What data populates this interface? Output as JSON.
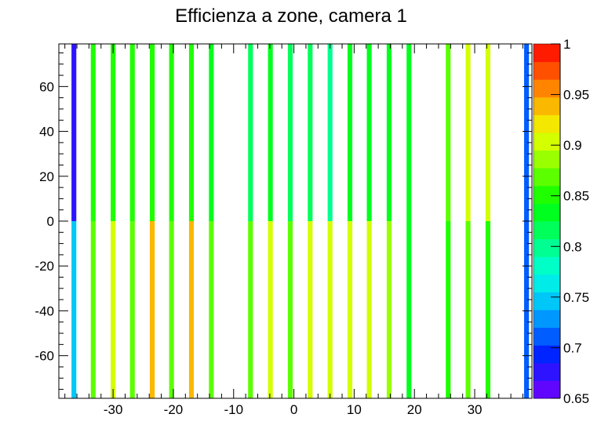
{
  "chart_data": {
    "type": "heatmap",
    "title": "Efficienza a zone, camera 1",
    "xlabel": "",
    "ylabel": "",
    "xlim": [
      -39,
      39.5
    ],
    "ylim": [
      -79,
      79
    ],
    "xticks": [
      -30,
      -20,
      -10,
      0,
      10,
      20,
      30
    ],
    "yticks": [
      -60,
      -40,
      -20,
      0,
      20,
      40,
      60
    ],
    "y_bins": [
      [
        -79,
        0
      ],
      [
        0,
        79
      ]
    ],
    "strip_width": 0.8,
    "colorbar": {
      "zlim": [
        0.65,
        1.0
      ],
      "ticks": [
        "0.65",
        "0.7",
        "0.75",
        "0.8",
        "0.85",
        "0.9",
        "0.95",
        "1"
      ],
      "n_levels": 20
    },
    "strips": [
      {
        "x": -36.5,
        "z_low": 0.74,
        "z_high": 0.67
      },
      {
        "x": -33.3,
        "z_low": 0.86,
        "z_high": 0.855
      },
      {
        "x": -30.0,
        "z_low": 0.895,
        "z_high": 0.855
      },
      {
        "x": -26.8,
        "z_low": 0.87,
        "z_high": 0.855
      },
      {
        "x": -23.5,
        "z_low": 0.935,
        "z_high": 0.855
      },
      {
        "x": -20.3,
        "z_low": 0.875,
        "z_high": 0.855
      },
      {
        "x": -17.0,
        "z_low": 0.935,
        "z_high": 0.855
      },
      {
        "x": -13.7,
        "z_low": 0.875,
        "z_high": 0.84
      },
      {
        "x": -7.2,
        "z_low": 0.875,
        "z_high": 0.82
      },
      {
        "x": -3.9,
        "z_low": 0.895,
        "z_high": 0.83
      },
      {
        "x": -0.6,
        "z_low": 0.875,
        "z_high": 0.825
      },
      {
        "x": 2.7,
        "z_low": 0.895,
        "z_high": 0.825
      },
      {
        "x": 6.0,
        "z_low": 0.895,
        "z_high": 0.795
      },
      {
        "x": 9.3,
        "z_low": 0.91,
        "z_high": 0.83
      },
      {
        "x": 12.5,
        "z_low": 0.895,
        "z_high": 0.83
      },
      {
        "x": 15.8,
        "z_low": 0.88,
        "z_high": 0.83
      },
      {
        "x": 19.1,
        "z_low": 0.83,
        "z_high": 0.84
      },
      {
        "x": 25.6,
        "z_low": 0.845,
        "z_high": 0.86
      },
      {
        "x": 28.9,
        "z_low": 0.87,
        "z_high": 0.91
      },
      {
        "x": 32.2,
        "z_low": 0.845,
        "z_high": 0.895
      },
      {
        "x": 38.6,
        "z_low": 0.72,
        "z_high": 0.72
      }
    ]
  }
}
